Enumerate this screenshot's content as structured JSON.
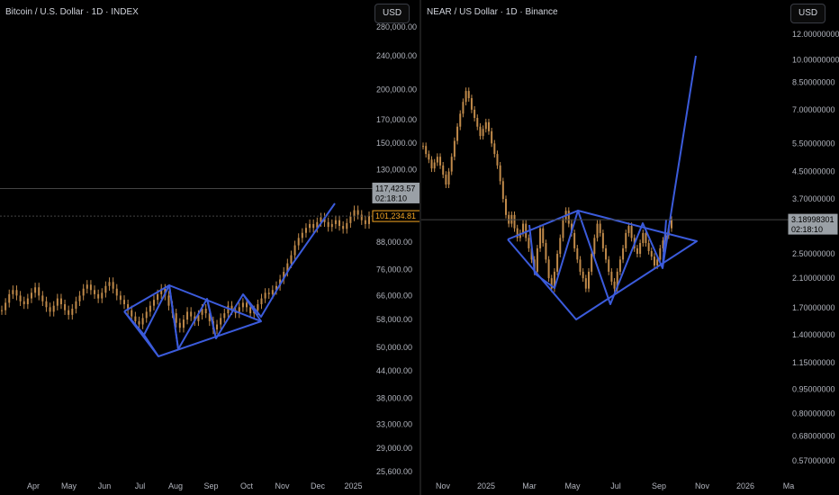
{
  "colors": {
    "background": "#000000",
    "pattern_line": "#3b5bdb",
    "candle": "#c08a4a",
    "price_tag_last": "#f5a623",
    "price_tag_ref": "#9aa0a6"
  },
  "chart_data": [
    {
      "type": "line",
      "title": "Bitcoin / U.S. Dollar · 1D · INDEX",
      "currency_button": "USD",
      "scale": "log",
      "x_ticks": [
        "Apr",
        "May",
        "Jun",
        "Jul",
        "Aug",
        "Sep",
        "Oct",
        "Nov",
        "Dec",
        "2025"
      ],
      "y_ticks": [
        "280,000.00",
        "240,000.00",
        "200,000.00",
        "170,000.00",
        "150,000.00",
        "130,000.00",
        "88,000.00",
        "76,000.00",
        "66,000.00",
        "58,000.00",
        "50,000.00",
        "44,000.00",
        "38,000.00",
        "33,000.00",
        "29,000.00",
        "25,600.00"
      ],
      "price_tags": [
        {
          "price": "117,423.57",
          "countdown": "02:18:10",
          "kind": "ref"
        },
        {
          "price": "101,234.81",
          "kind": "last"
        }
      ],
      "series": [
        {
          "values": [
            61000,
            63500,
            66500,
            68000,
            66000,
            64000,
            63000,
            65000,
            67000,
            69000,
            66000,
            64000,
            62000,
            60500,
            62500,
            65000,
            63000,
            61000,
            59500,
            61500,
            64000,
            66000,
            68500,
            70000,
            68000,
            66500,
            65000,
            67000,
            69500,
            71000,
            68500,
            66000,
            64500,
            63000,
            61000,
            59000,
            57500,
            56500,
            58500,
            60500,
            62500,
            64500,
            66500,
            68500,
            66000,
            62500,
            60000,
            57000,
            55500,
            58000,
            60500,
            59000,
            57500,
            59500,
            61500,
            60000,
            57500,
            55000,
            56500,
            58500,
            60000,
            62500,
            61000,
            60000,
            62000,
            63500,
            62000,
            60000,
            61000,
            63000,
            65000,
            67000,
            66500,
            68000,
            69500,
            72000,
            75000,
            78500,
            82000,
            86500,
            90000,
            92500,
            95000,
            97000,
            95000,
            98000,
            100500,
            98000,
            95500,
            97000,
            99000,
            96000,
            94500,
            97500,
            101000,
            104500,
            102000,
            99000,
            97000,
            101234
          ]
        }
      ],
      "annotations": "Blue diamond / symmetrical triangle pattern drawn over Jul–Oct consolidation, breakout trendline into Dec"
    },
    {
      "type": "line",
      "title": "NEAR / US Dollar · 1D · Binance",
      "currency_button": "USD",
      "scale": "log",
      "x_ticks": [
        "Nov",
        "2025",
        "Mar",
        "May",
        "Jul",
        "Sep",
        "Nov",
        "2026",
        "Ma"
      ],
      "y_ticks": [
        "12.00000000",
        "10.00000000",
        "8.50000000",
        "7.00000000",
        "5.50000000",
        "4.50000000",
        "3.70000000",
        "2.50000000",
        "2.10000000",
        "1.70000000",
        "1.40000000",
        "1.15000000",
        "0.95000000",
        "0.80000000",
        "0.68000000",
        "0.57000000"
      ],
      "price_tags": [
        {
          "price": "3.18998301",
          "countdown": "02:18:10",
          "kind": "ref"
        }
      ],
      "series": [
        {
          "values": [
            5.4,
            5.1,
            4.9,
            4.6,
            4.8,
            5.0,
            4.7,
            4.4,
            4.1,
            4.5,
            5.0,
            5.6,
            6.2,
            6.8,
            7.4,
            8.0,
            7.6,
            7.0,
            6.6,
            6.2,
            5.8,
            6.1,
            6.4,
            6.0,
            5.5,
            5.1,
            4.7,
            4.2,
            3.7,
            3.3,
            3.1,
            3.3,
            3.0,
            2.8,
            2.9,
            3.1,
            2.8,
            2.6,
            2.4,
            2.2,
            2.6,
            3.0,
            2.7,
            2.4,
            2.1,
            1.95,
            2.2,
            2.5,
            2.8,
            3.2,
            3.4,
            3.1,
            2.9,
            2.6,
            2.4,
            2.2,
            2.1,
            1.95,
            2.2,
            2.5,
            2.8,
            3.1,
            2.9,
            2.6,
            2.4,
            2.2,
            2.05,
            1.95,
            2.2,
            2.4,
            2.6,
            2.9,
            3.05,
            2.8,
            2.6,
            2.5,
            2.7,
            2.9,
            2.7,
            2.55,
            2.45,
            2.3,
            2.4,
            2.6,
            2.75,
            2.85,
            3.0,
            3.19
          ]
        }
      ],
      "annotations": "Blue diamond pattern Feb–Sep with projected upward breakout line toward ~10"
    }
  ]
}
